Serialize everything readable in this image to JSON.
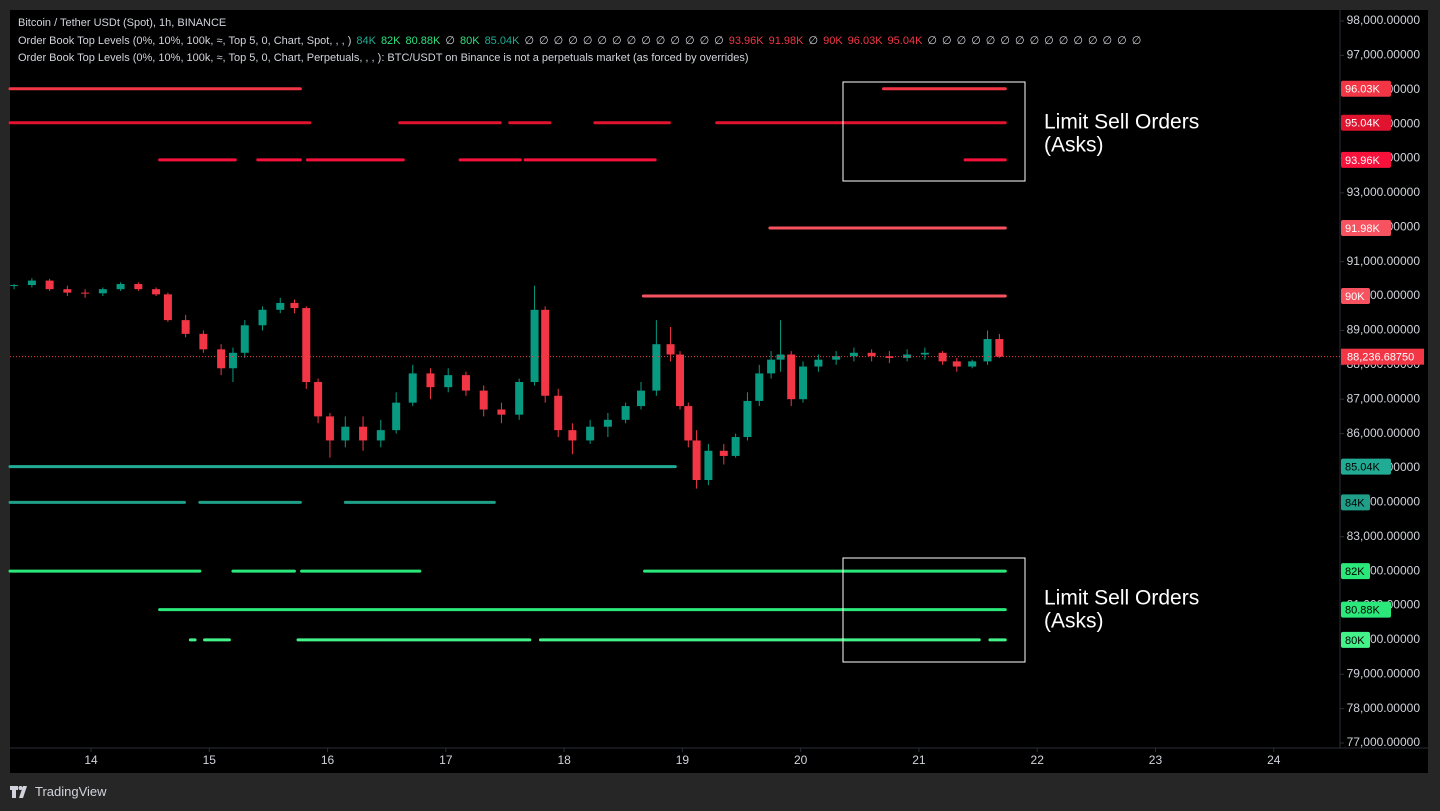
{
  "header": {
    "title": "Bitcoin / Tether USDt (Spot), 1h, BINANCE",
    "indicator_1": "Order Book Top Levels (0%, 10%, 100k, ≈, Top 5, 0, Chart, Spot, , , )",
    "indicator_1_values": [
      "84K",
      "82K",
      "80.88K",
      "∅",
      "80K",
      "85.04K",
      "∅",
      "∅",
      "∅",
      "∅",
      "∅",
      "∅",
      "∅",
      "∅",
      "∅",
      "∅",
      "∅",
      "∅",
      "∅",
      "∅",
      "93.96K",
      "91.98K",
      "∅",
      "90K",
      "96.03K",
      "95.04K",
      "∅",
      "∅",
      "∅",
      "∅",
      "∅",
      "∅",
      "∅",
      "∅",
      "∅",
      "∅",
      "∅",
      "∅",
      "∅",
      "∅",
      "∅"
    ],
    "indicator_1_colors": [
      "#22ab94",
      "#2fe07c",
      "#2fe07c",
      "#d1d4dc",
      "#2fe07c",
      "#22ab94",
      "#d1d4dc",
      "#d1d4dc",
      "#d1d4dc",
      "#d1d4dc",
      "#d1d4dc",
      "#d1d4dc",
      "#d1d4dc",
      "#d1d4dc",
      "#d1d4dc",
      "#d1d4dc",
      "#d1d4dc",
      "#d1d4dc",
      "#d1d4dc",
      "#d1d4dc",
      "#f23645",
      "#f23645",
      "#d1d4dc",
      "#f23645",
      "#f23645",
      "#f23645",
      "#d1d4dc",
      "#d1d4dc",
      "#d1d4dc",
      "#d1d4dc",
      "#d1d4dc",
      "#d1d4dc",
      "#d1d4dc",
      "#d1d4dc",
      "#d1d4dc",
      "#d1d4dc",
      "#d1d4dc",
      "#d1d4dc",
      "#d1d4dc",
      "#d1d4dc",
      "#d1d4dc"
    ],
    "indicator_2": "Order Book Top Levels (0%, 10%, 100k, ≈, Top 5, 0, Chart, Perpetuals, , , ): BTC/USDT on Binance is not a perpetuals market (as forced by overrides)"
  },
  "chart_data": {
    "type": "candlestick",
    "x": [
      13.35,
      13.5,
      13.65,
      13.8,
      13.95,
      14.1,
      14.25,
      14.4,
      14.55,
      14.65,
      14.8,
      14.95,
      15.1,
      15.2,
      15.3,
      15.45,
      15.6,
      15.72,
      15.82,
      15.92,
      16.02,
      16.15,
      16.3,
      16.45,
      16.58,
      16.72,
      16.87,
      17.02,
      17.17,
      17.32,
      17.47,
      17.62,
      17.75,
      17.84,
      17.95,
      18.07,
      18.22,
      18.37,
      18.52,
      18.65,
      18.78,
      18.9,
      18.98,
      19.05,
      19.12,
      19.22,
      19.35,
      19.45,
      19.55,
      19.65,
      19.75,
      19.83,
      19.92,
      20.02,
      20.15,
      20.3,
      20.45,
      20.6,
      20.75,
      20.9,
      21.05,
      21.2,
      21.32,
      21.45,
      21.58,
      21.68
    ],
    "open": [
      90300,
      90320,
      90450,
      90200,
      90100,
      90080,
      90200,
      90350,
      90200,
      90050,
      89300,
      88900,
      88450,
      87900,
      88350,
      89150,
      89600,
      89800,
      89650,
      87500,
      86500,
      85800,
      86200,
      85800,
      86100,
      86900,
      87750,
      87350,
      87700,
      87250,
      86700,
      86550,
      87500,
      89600,
      87100,
      86100,
      85800,
      86200,
      86400,
      86800,
      87250,
      88600,
      88300,
      86800,
      85800,
      84650,
      85500,
      85350,
      85900,
      86950,
      87750,
      88150,
      88300,
      87000,
      87950,
      88150,
      88250,
      88350,
      88250,
      88200,
      88300,
      88350,
      88100,
      87950,
      88100,
      88750
    ],
    "high": [
      90350,
      90520,
      90500,
      90300,
      90200,
      90250,
      90400,
      90400,
      90250,
      90100,
      89450,
      89000,
      88600,
      88500,
      89300,
      89700,
      89950,
      89900,
      89700,
      87600,
      86600,
      86500,
      86500,
      86400,
      87200,
      88000,
      87900,
      87900,
      87800,
      87400,
      86900,
      87600,
      90300,
      89700,
      87300,
      86300,
      86400,
      86600,
      86900,
      87500,
      89300,
      89100,
      88400,
      86900,
      86100,
      85700,
      85700,
      86000,
      87200,
      88000,
      88400,
      89300,
      88400,
      88100,
      88300,
      88400,
      88500,
      88450,
      88400,
      88450,
      88500,
      88400,
      88200,
      88150,
      89000,
      88900
    ],
    "low": [
      90200,
      90250,
      90150,
      90000,
      89950,
      90000,
      90150,
      90150,
      90000,
      89250,
      88800,
      88350,
      87700,
      87500,
      88200,
      89000,
      89500,
      89500,
      87300,
      86300,
      85300,
      85600,
      85500,
      85600,
      86000,
      86800,
      87000,
      87200,
      87100,
      86500,
      86300,
      86400,
      87400,
      86900,
      85900,
      85400,
      85700,
      85900,
      86300,
      86700,
      87100,
      88100,
      86700,
      85600,
      84400,
      84500,
      85100,
      85300,
      85800,
      86800,
      87600,
      87800,
      86800,
      86900,
      87800,
      88000,
      88100,
      88100,
      88050,
      88100,
      88150,
      88000,
      87800,
      87900,
      88000,
      88200
    ],
    "close": [
      90320,
      90450,
      90200,
      90100,
      90080,
      90200,
      90350,
      90200,
      90050,
      89300,
      88900,
      88450,
      87900,
      88350,
      89150,
      89600,
      89800,
      89650,
      87500,
      86500,
      85800,
      86200,
      85800,
      86100,
      86900,
      87750,
      87350,
      87700,
      87250,
      86700,
      86550,
      87500,
      89600,
      87100,
      86100,
      85800,
      86200,
      86400,
      86800,
      87250,
      88600,
      88300,
      86800,
      85800,
      84650,
      85500,
      85350,
      85900,
      86950,
      87750,
      88150,
      88300,
      87000,
      87950,
      88150,
      88250,
      88350,
      88250,
      88200,
      88300,
      88350,
      88100,
      87950,
      88100,
      88750,
      88236.6875
    ],
    "up_color": "#089981",
    "down_color": "#f23645",
    "xlim": [
      13.315,
      24.56
    ],
    "xticks": [
      14,
      15,
      16,
      17,
      18,
      19,
      20,
      21,
      22,
      23,
      24
    ],
    "ylim": [
      76855,
      98320
    ],
    "yticks": [
      {
        "value": 98000,
        "label": "98,000.00000"
      },
      {
        "value": 97000,
        "label": "97,000.00000"
      },
      {
        "value": 96000,
        "label": "96,000.00000"
      },
      {
        "value": 95000,
        "label": "95,000.00000"
      },
      {
        "value": 94000,
        "label": "94,000.00000"
      },
      {
        "value": 93000,
        "label": "93,000.00000"
      },
      {
        "value": 92000,
        "label": "92,000.00000"
      },
      {
        "value": 91000,
        "label": "91,000.00000"
      },
      {
        "value": 90000,
        "label": "90,000.00000"
      },
      {
        "value": 89000,
        "label": "89,000.00000"
      },
      {
        "value": 88000,
        "label": "88,000.00000"
      },
      {
        "value": 87000,
        "label": "87,000.00000"
      },
      {
        "value": 86000,
        "label": "86,000.00000"
      },
      {
        "value": 85000,
        "label": "85,000.00000"
      },
      {
        "value": 84000,
        "label": "84,000.00000"
      },
      {
        "value": 83000,
        "label": "83,000.00000"
      },
      {
        "value": 82000,
        "label": "82,000.00000"
      },
      {
        "value": 81000,
        "label": "81,000.00000"
      },
      {
        "value": 80000,
        "label": "80,000.00000"
      },
      {
        "value": 79000,
        "label": "79,000.00000"
      },
      {
        "value": 78000,
        "label": "78,000.00000"
      },
      {
        "value": 77000,
        "label": "77,000.00000"
      }
    ],
    "last_price": {
      "value": 88236.6875,
      "label": "88,236.68750",
      "color": "#f23645"
    },
    "levels": [
      {
        "label": "96.03K",
        "price": 96030,
        "color": "#f23645",
        "segments": [
          [
            13.315,
            15.77
          ],
          [
            20.7,
            21.73
          ]
        ]
      },
      {
        "label": "95.04K",
        "price": 95040,
        "color": "#e0142e",
        "segments": [
          [
            13.315,
            15.85
          ],
          [
            16.61,
            17.46
          ],
          [
            17.54,
            17.88
          ],
          [
            18.26,
            18.89
          ],
          [
            19.29,
            21.73
          ]
        ]
      },
      {
        "label": "93.96K",
        "price": 93960,
        "color": "#f7113b",
        "segments": [
          [
            14.58,
            15.22
          ],
          [
            15.41,
            15.77
          ],
          [
            15.83,
            16.64
          ],
          [
            17.12,
            17.63
          ],
          [
            17.67,
            18.77
          ],
          [
            21.39,
            21.73
          ]
        ]
      },
      {
        "label": "91.98K",
        "price": 91980,
        "color": "#f7525f",
        "segments": [
          [
            19.74,
            21.73
          ]
        ]
      },
      {
        "label": "90K",
        "price": 90000,
        "color": "#f7525f",
        "segments": [
          [
            18.67,
            21.73
          ]
        ]
      },
      {
        "label": "85.04K",
        "price": 85040,
        "color": "#22ab94",
        "segments": [
          [
            13.315,
            18.94
          ]
        ]
      },
      {
        "label": "84K",
        "price": 84000,
        "color": "#1f9e88",
        "segments": [
          [
            13.315,
            14.79
          ],
          [
            14.92,
            15.77
          ],
          [
            16.15,
            17.41
          ]
        ]
      },
      {
        "label": "82K",
        "price": 82000,
        "color": "#2be87a",
        "segments": [
          [
            13.315,
            14.92
          ],
          [
            15.2,
            15.72
          ],
          [
            15.78,
            16.78
          ],
          [
            18.68,
            21.73
          ]
        ]
      },
      {
        "label": "80.88K",
        "price": 80880,
        "color": "#2be87a",
        "segments": [
          [
            14.58,
            21.73
          ]
        ]
      },
      {
        "label": "80K",
        "price": 80000,
        "color": "#44f28a",
        "segments": [
          [
            14.84,
            14.88
          ],
          [
            14.96,
            15.17
          ],
          [
            15.75,
            17.71
          ],
          [
            17.8,
            21.51
          ],
          [
            21.6,
            21.73
          ]
        ]
      }
    ],
    "annotations": [
      [
        "Limit Sell Orders",
        "(Asks)"
      ],
      [
        "Limit Sell Orders",
        "(Asks)"
      ]
    ]
  },
  "footer": {
    "brand": "TradingView"
  }
}
